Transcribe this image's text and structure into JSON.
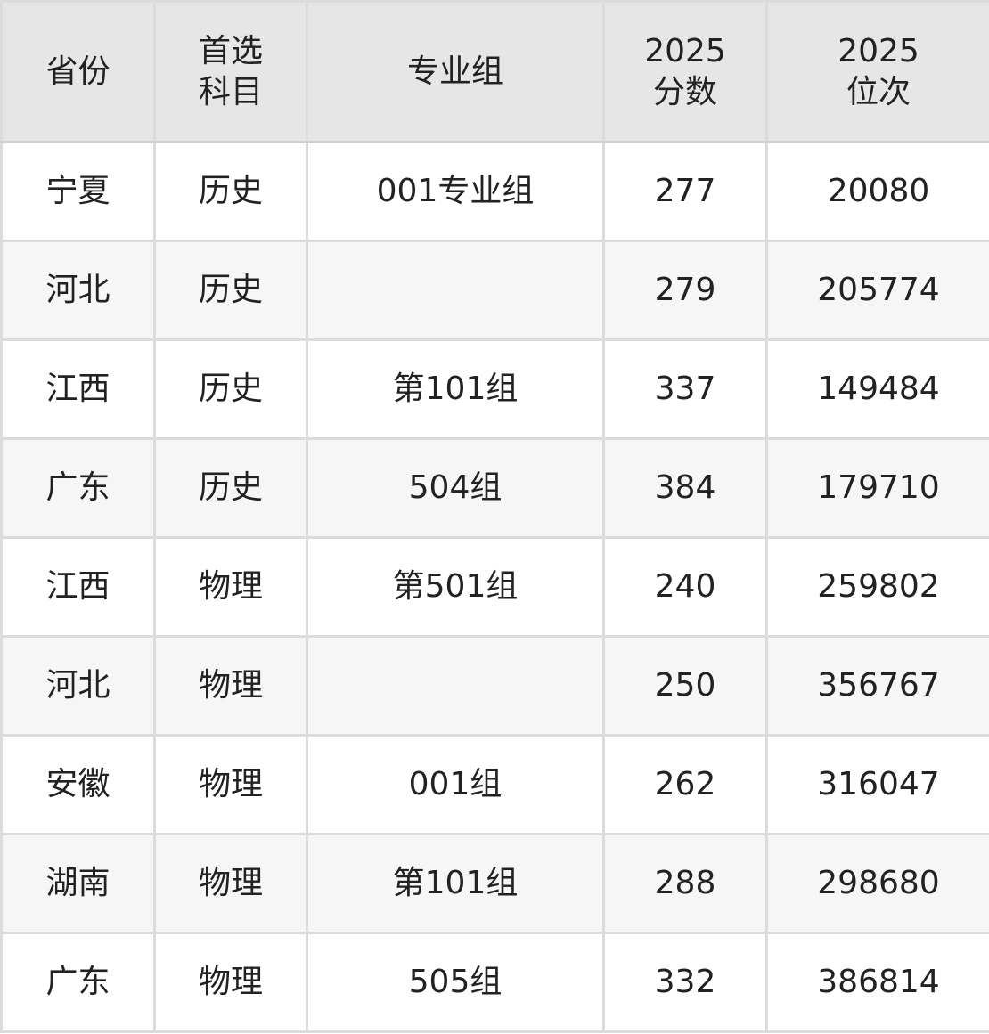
{
  "headers": [
    "省份",
    "首选\n科目",
    "专业组",
    "2025\n分数",
    "2025\n位次"
  ],
  "header_lines": [
    [
      "省份"
    ],
    [
      "首选",
      "科目"
    ],
    [
      "专业组"
    ],
    [
      "2025",
      "分数"
    ],
    [
      "2025",
      "位次"
    ]
  ],
  "rows": [
    [
      "宁夏",
      "历史",
      "001专业组",
      "277",
      "20080"
    ],
    [
      "河北",
      "历史",
      "",
      "279",
      "205774"
    ],
    [
      "江西",
      "历史",
      "第101组",
      "337",
      "149484"
    ],
    [
      "广东",
      "历史",
      "504组",
      "384",
      "179710"
    ],
    [
      "江西",
      "物理",
      "第501组",
      "240",
      "259802"
    ],
    [
      "河北",
      "物理",
      "",
      "250",
      "356767"
    ],
    [
      "安徽",
      "物理",
      "001组",
      "262",
      "316047"
    ],
    [
      "湖南",
      "物理",
      "第101组",
      "288",
      "298680"
    ],
    [
      "广东",
      "物理",
      "505组",
      "332",
      "386814"
    ]
  ],
  "colors": {
    "header_bg": "#e6e6e6",
    "alt_row_bg": "#f6f6f6",
    "border": "#dcdcdc",
    "text": "#222222"
  }
}
